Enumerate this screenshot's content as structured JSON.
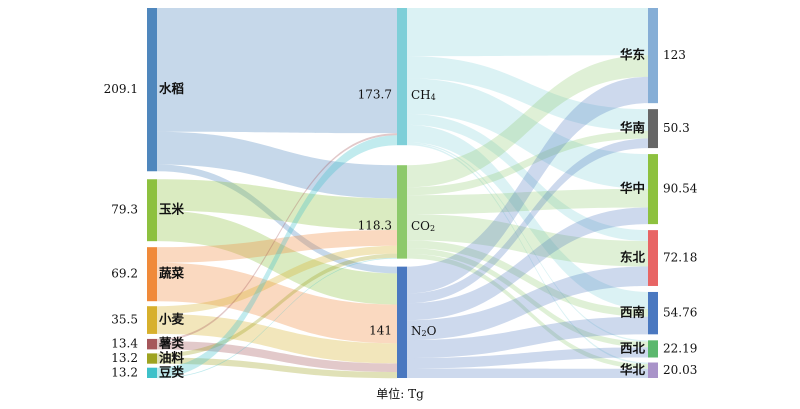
{
  "unit_label": "单位: Tg",
  "diagram": {
    "type": "sankey",
    "sources": [
      {
        "name": "水稻",
        "value": 209.1,
        "value_label": "209.1",
        "color": "#4f87bd"
      },
      {
        "name": "玉米",
        "value": 79.3,
        "value_label": "79.3",
        "color": "#8dc13f"
      },
      {
        "name": "蔬菜",
        "value": 69.2,
        "value_label": "69.2",
        "color": "#f08a3a"
      },
      {
        "name": "小麦",
        "value": 35.5,
        "value_label": "35.5",
        "color": "#d7b02d"
      },
      {
        "name": "薯类",
        "value": 13.4,
        "value_label": "13.4",
        "color": "#a6575b"
      },
      {
        "name": "油料",
        "value": 13.2,
        "value_label": "13.2",
        "color": "#9ea320"
      },
      {
        "name": "豆类",
        "value": 13.2,
        "value_label": "13.2",
        "color": "#3ec1c9"
      }
    ],
    "gases": [
      {
        "name": "CH",
        "sub": "4",
        "value": 173.7,
        "value_label": "173.7",
        "color": "#7ecfd8"
      },
      {
        "name": "CO",
        "sub": "2",
        "value": 118.3,
        "value_label": "118.3",
        "color": "#8dc96b"
      },
      {
        "name": "N",
        "sub": "2",
        "suffix": "O",
        "value": 141,
        "value_label": "141",
        "color": "#4a78c0"
      }
    ],
    "regions": [
      {
        "name": "华东",
        "value": 123,
        "value_label": "123",
        "color": "#86aed6"
      },
      {
        "name": "华南",
        "value": 50.3,
        "value_label": "50.3",
        "color": "#666666"
      },
      {
        "name": "华中",
        "value": 90.54,
        "value_label": "90.54",
        "color": "#8dc13f"
      },
      {
        "name": "东北",
        "value": 72.18,
        "value_label": "72.18",
        "color": "#e86565"
      },
      {
        "name": "西南",
        "value": 54.76,
        "value_label": "54.76",
        "color": "#4a78c0"
      },
      {
        "name": "西北",
        "value": 22.19,
        "value_label": "22.19",
        "color": "#5cb86e"
      },
      {
        "name": "华北",
        "value": 20.03,
        "value_label": "20.03",
        "color": "#a993c9"
      }
    ],
    "flows_to_gas": [
      {
        "from": "水稻",
        "to": "CH",
        "value": 158.5
      },
      {
        "from": "水稻",
        "to": "CO",
        "value": 42
      },
      {
        "from": "水稻",
        "to": "N",
        "value": 8.6
      },
      {
        "from": "玉米",
        "to": "CO",
        "value": 40
      },
      {
        "from": "玉米",
        "to": "N",
        "value": 39.3
      },
      {
        "from": "蔬菜",
        "to": "CO",
        "value": 20
      },
      {
        "from": "蔬菜",
        "to": "N",
        "value": 49.2
      },
      {
        "from": "小麦",
        "to": "CO",
        "value": 10
      },
      {
        "from": "小麦",
        "to": "N",
        "value": 25.5
      },
      {
        "from": "薯类",
        "to": "CH",
        "value": 2.6
      },
      {
        "from": "薯类",
        "to": "N",
        "value": 10.8
      },
      {
        "from": "油料",
        "to": "CO",
        "value": 5.3
      },
      {
        "from": "油料",
        "to": "N",
        "value": 7.9
      },
      {
        "from": "豆类",
        "to": "CH",
        "value": 12.6
      },
      {
        "from": "豆类",
        "to": "CO",
        "value": 1
      },
      {
        "from": "豆类",
        "to": "N",
        "value": -0.4
      }
    ],
    "flows_to_region": [
      {
        "from": "CH",
        "to": "华东",
        "value": 61
      },
      {
        "from": "CH",
        "to": "华南",
        "value": 28
      },
      {
        "from": "CH",
        "to": "华中",
        "value": 45
      },
      {
        "from": "CH",
        "to": "东北",
        "value": 14
      },
      {
        "from": "CH",
        "to": "西南",
        "value": 22
      },
      {
        "from": "CH",
        "to": "西北",
        "value": 1.7
      },
      {
        "from": "CH",
        "to": "华北",
        "value": 2
      },
      {
        "from": "CO",
        "to": "华东",
        "value": 28
      },
      {
        "from": "CO",
        "to": "华南",
        "value": 10
      },
      {
        "from": "CO",
        "to": "华中",
        "value": 24
      },
      {
        "from": "CO",
        "to": "东北",
        "value": 33
      },
      {
        "from": "CO",
        "to": "西南",
        "value": 10
      },
      {
        "from": "CO",
        "to": "西北",
        "value": 7.3
      },
      {
        "from": "CO",
        "to": "华北",
        "value": 6
      },
      {
        "from": "N",
        "to": "华东",
        "value": 34
      },
      {
        "from": "N",
        "to": "华南",
        "value": 12.3
      },
      {
        "from": "N",
        "to": "华中",
        "value": 21.54
      },
      {
        "from": "N",
        "to": "东北",
        "value": 25.18
      },
      {
        "from": "N",
        "to": "西南",
        "value": 22.76
      },
      {
        "from": "N",
        "to": "西北",
        "value": 13.19
      },
      {
        "from": "N",
        "to": "华北",
        "value": 12.03
      }
    ]
  }
}
